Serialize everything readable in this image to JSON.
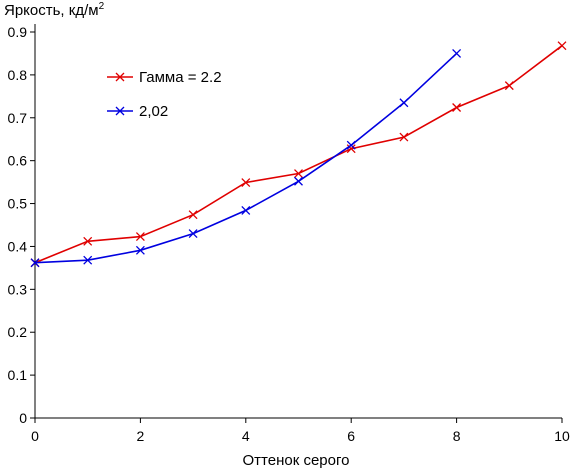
{
  "chart_data": {
    "type": "line",
    "ylabel_main": "Яркость, кд/м",
    "ylabel_sup": "2",
    "xlabel": "Оттенок серого",
    "xlim": [
      0,
      10
    ],
    "ylim": [
      0,
      0.9
    ],
    "x_ticks": [
      "0",
      "2",
      "4",
      "6",
      "8",
      "10"
    ],
    "y_ticks": [
      "0",
      "0.1",
      "0.2",
      "0.3",
      "0.4",
      "0.5",
      "0.6",
      "0.7",
      "0.8",
      "0.9"
    ],
    "grid": false,
    "legend_position": "top-left",
    "series": [
      {
        "name": "Гамма = 2.2",
        "color": "#e00000",
        "x": [
          0,
          1,
          2,
          3,
          4,
          5,
          6,
          7,
          8,
          9,
          10
        ],
        "y": [
          0.362,
          0.412,
          0.423,
          0.474,
          0.549,
          0.57,
          0.628,
          0.655,
          0.724,
          0.775,
          0.868
        ]
      },
      {
        "name": "2,02",
        "color": "#0000e0",
        "x": [
          0,
          1,
          2,
          3,
          4,
          5,
          6,
          7,
          8
        ],
        "y": [
          0.362,
          0.368,
          0.391,
          0.43,
          0.484,
          0.552,
          0.636,
          0.735,
          0.85
        ]
      }
    ]
  }
}
